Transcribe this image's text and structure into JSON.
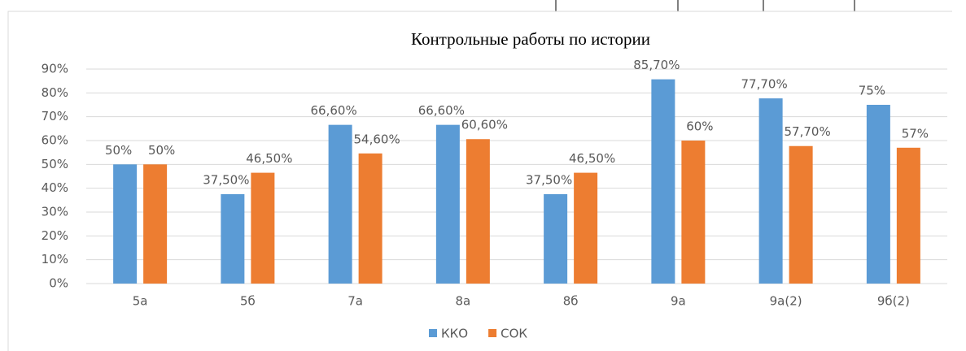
{
  "chart_data": {
    "type": "bar",
    "title": "Контрольные работы по истории",
    "categories": [
      "5а",
      "5б",
      "7а",
      "8а",
      "8б",
      "9а",
      "9а(2)",
      "9б(2)"
    ],
    "series": [
      {
        "name": "ККО",
        "color": "#5b9bd5",
        "values": [
          50,
          37.5,
          66.6,
          66.6,
          37.5,
          85.7,
          77.7,
          75
        ],
        "value_labels": [
          "50%",
          "37,50%",
          "66,60%",
          "66,60%",
          "37,50%",
          "85,70%",
          "77,70%",
          "75%"
        ]
      },
      {
        "name": "СОК",
        "color": "#ed7d31",
        "values": [
          50,
          46.5,
          54.6,
          60.6,
          46.5,
          60,
          57.7,
          57
        ],
        "value_labels": [
          "50%",
          "46,50%",
          "54,60%",
          "60,60%",
          "46,50%",
          "60%",
          "57,70%",
          "57%"
        ]
      }
    ],
    "ylim": [
      0,
      90
    ],
    "yticks": [
      {
        "value": 0,
        "label": "0%"
      },
      {
        "value": 10,
        "label": "10%"
      },
      {
        "value": 20,
        "label": "20%"
      },
      {
        "value": 30,
        "label": "30%"
      },
      {
        "value": 40,
        "label": "40%"
      },
      {
        "value": 50,
        "label": "50%"
      },
      {
        "value": 60,
        "label": "60%"
      },
      {
        "value": 70,
        "label": "70%"
      },
      {
        "value": 80,
        "label": "80%"
      },
      {
        "value": 90,
        "label": "90%"
      }
    ],
    "grid": true,
    "legend": "bottom"
  }
}
